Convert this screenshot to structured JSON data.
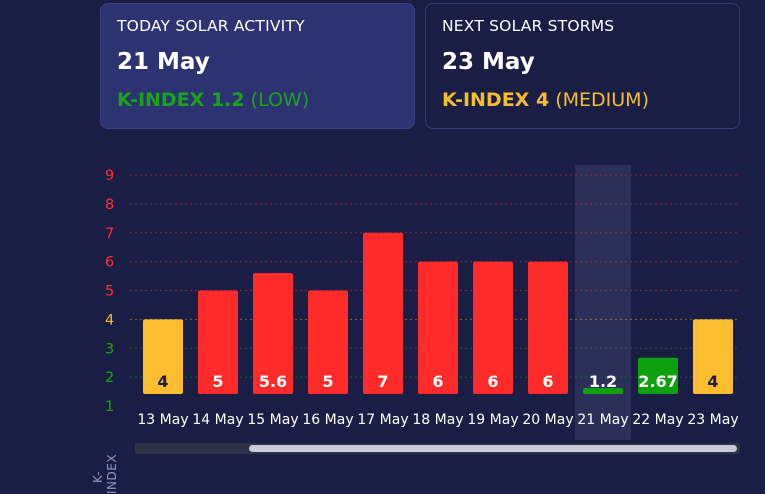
{
  "today_card": {
    "heading": "TODAY SOLAR ACTIVITY",
    "date": "21 May",
    "k_label": "K-INDEX 1.2",
    "k_level": "(LOW)",
    "k_color": "#1aa31a"
  },
  "next_card": {
    "heading": "NEXT SOLAR STORMS",
    "date": "23 May",
    "k_label": "K-INDEX 4",
    "k_level": "(MEDIUM)",
    "k_color": "#f6bd2e"
  },
  "chart_data": {
    "type": "bar",
    "ylabel": "K-INDEX",
    "ylim": [
      1,
      9
    ],
    "y_ticks": [
      "1",
      "2",
      "3",
      "4",
      "5",
      "6",
      "7",
      "8",
      "9"
    ],
    "y_tick_colors": [
      "#1aa31a",
      "#1aa31a",
      "#1aa31a",
      "#f6bd2e",
      "#ff2d2d",
      "#ff2d2d",
      "#ff2d2d",
      "#ff2d2d",
      "#ff2d2d"
    ],
    "categories": [
      "13 May",
      "14 May",
      "15 May",
      "16 May",
      "17 May",
      "18 May",
      "19 May",
      "20 May",
      "21 May",
      "22 May",
      "23 May"
    ],
    "values": [
      4,
      5,
      5.6,
      5,
      7,
      6,
      6,
      6,
      1.2,
      2.67,
      4
    ],
    "value_labels": [
      "4",
      "5",
      "5.6",
      "5",
      "7",
      "6",
      "6",
      "6",
      "1.2",
      "2.67",
      "4"
    ],
    "highlight_category": "21 May",
    "colors": {
      "low": "#0ea00e",
      "medium": "#fdbd2f",
      "high": "#ff2b2b"
    },
    "grid": "dotted horizontal"
  }
}
